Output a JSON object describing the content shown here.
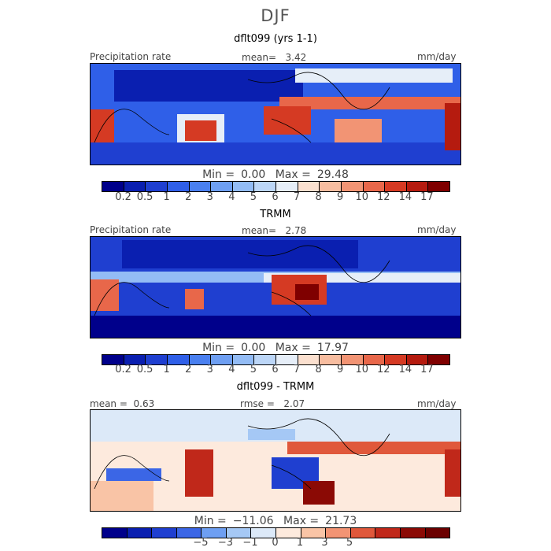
{
  "season": "DJF",
  "panels": [
    {
      "title": "dflt099 (yrs 1-1)",
      "left_label": "Precipitation rate",
      "stat_label": "mean=",
      "stat_value": "3.42",
      "units": "mm/day",
      "min_label": "Min =",
      "min_value": "0.00",
      "max_label": "Max =",
      "max_value": "29.48"
    },
    {
      "title": "TRMM",
      "left_label": "Precipitation rate",
      "stat_label": "mean=",
      "stat_value": "2.78",
      "units": "mm/day",
      "min_label": "Min =",
      "min_value": "0.00",
      "max_label": "Max =",
      "max_value": "17.97"
    },
    {
      "title": "dflt099 - TRMM",
      "left_label": "mean =",
      "left_value": "0.63",
      "stat_label": "rmse =",
      "stat_value": "2.07",
      "units": "mm/day",
      "min_label": "Min =",
      "min_value": "−11.06",
      "max_label": "Max =",
      "max_value": "21.73"
    }
  ],
  "chart_data": [
    {
      "type": "heatmap",
      "title": "dflt099 (yrs 1-1)",
      "field": "Precipitation rate",
      "units": "mm/day",
      "mean": 3.42,
      "min": 0.0,
      "max": 29.48,
      "colorbar_ticks": [
        "0.2",
        "0.5",
        "1",
        "2",
        "3",
        "4",
        "5",
        "6",
        "7",
        "8",
        "9",
        "10",
        "12",
        "14",
        "17"
      ],
      "colors": [
        "#00008b",
        "#0a1fb0",
        "#1f3fd0",
        "#2f5fe8",
        "#4a80f0",
        "#6e9ff2",
        "#93bcf5",
        "#bcd6f7",
        "#e6eef8",
        "#fbe0cf",
        "#f7bda0",
        "#f29474",
        "#e8674a",
        "#d53a23",
        "#b51b0f",
        "#7f0000"
      ]
    },
    {
      "type": "heatmap",
      "title": "TRMM",
      "field": "Precipitation rate",
      "units": "mm/day",
      "mean": 2.78,
      "min": 0.0,
      "max": 17.97,
      "colorbar_ticks": [
        "0.2",
        "0.5",
        "1",
        "2",
        "3",
        "4",
        "5",
        "6",
        "7",
        "8",
        "9",
        "10",
        "12",
        "14",
        "17"
      ],
      "colors": [
        "#00008b",
        "#0a1fb0",
        "#1f3fd0",
        "#2f5fe8",
        "#4a80f0",
        "#6e9ff2",
        "#93bcf5",
        "#bcd6f7",
        "#e6eef8",
        "#fbe0cf",
        "#f7bda0",
        "#f29474",
        "#e8674a",
        "#d53a23",
        "#b51b0f",
        "#7f0000"
      ]
    },
    {
      "type": "heatmap",
      "title": "dflt099 - TRMM",
      "units": "mm/day",
      "mean": 0.63,
      "rmse": 2.07,
      "min": -11.06,
      "max": 21.73,
      "colorbar_ticks": [
        "−5",
        "−3",
        "−1",
        "0",
        "1",
        "3",
        "5"
      ],
      "colors": [
        "#00008b",
        "#0a1fb0",
        "#1f3fd0",
        "#3b66e6",
        "#6e9ff2",
        "#a5c8f5",
        "#dce9f8",
        "#fdeadd",
        "#f9c4a6",
        "#f29474",
        "#e0583b",
        "#c0281a",
        "#8b0a05",
        "#6b0000"
      ]
    }
  ]
}
